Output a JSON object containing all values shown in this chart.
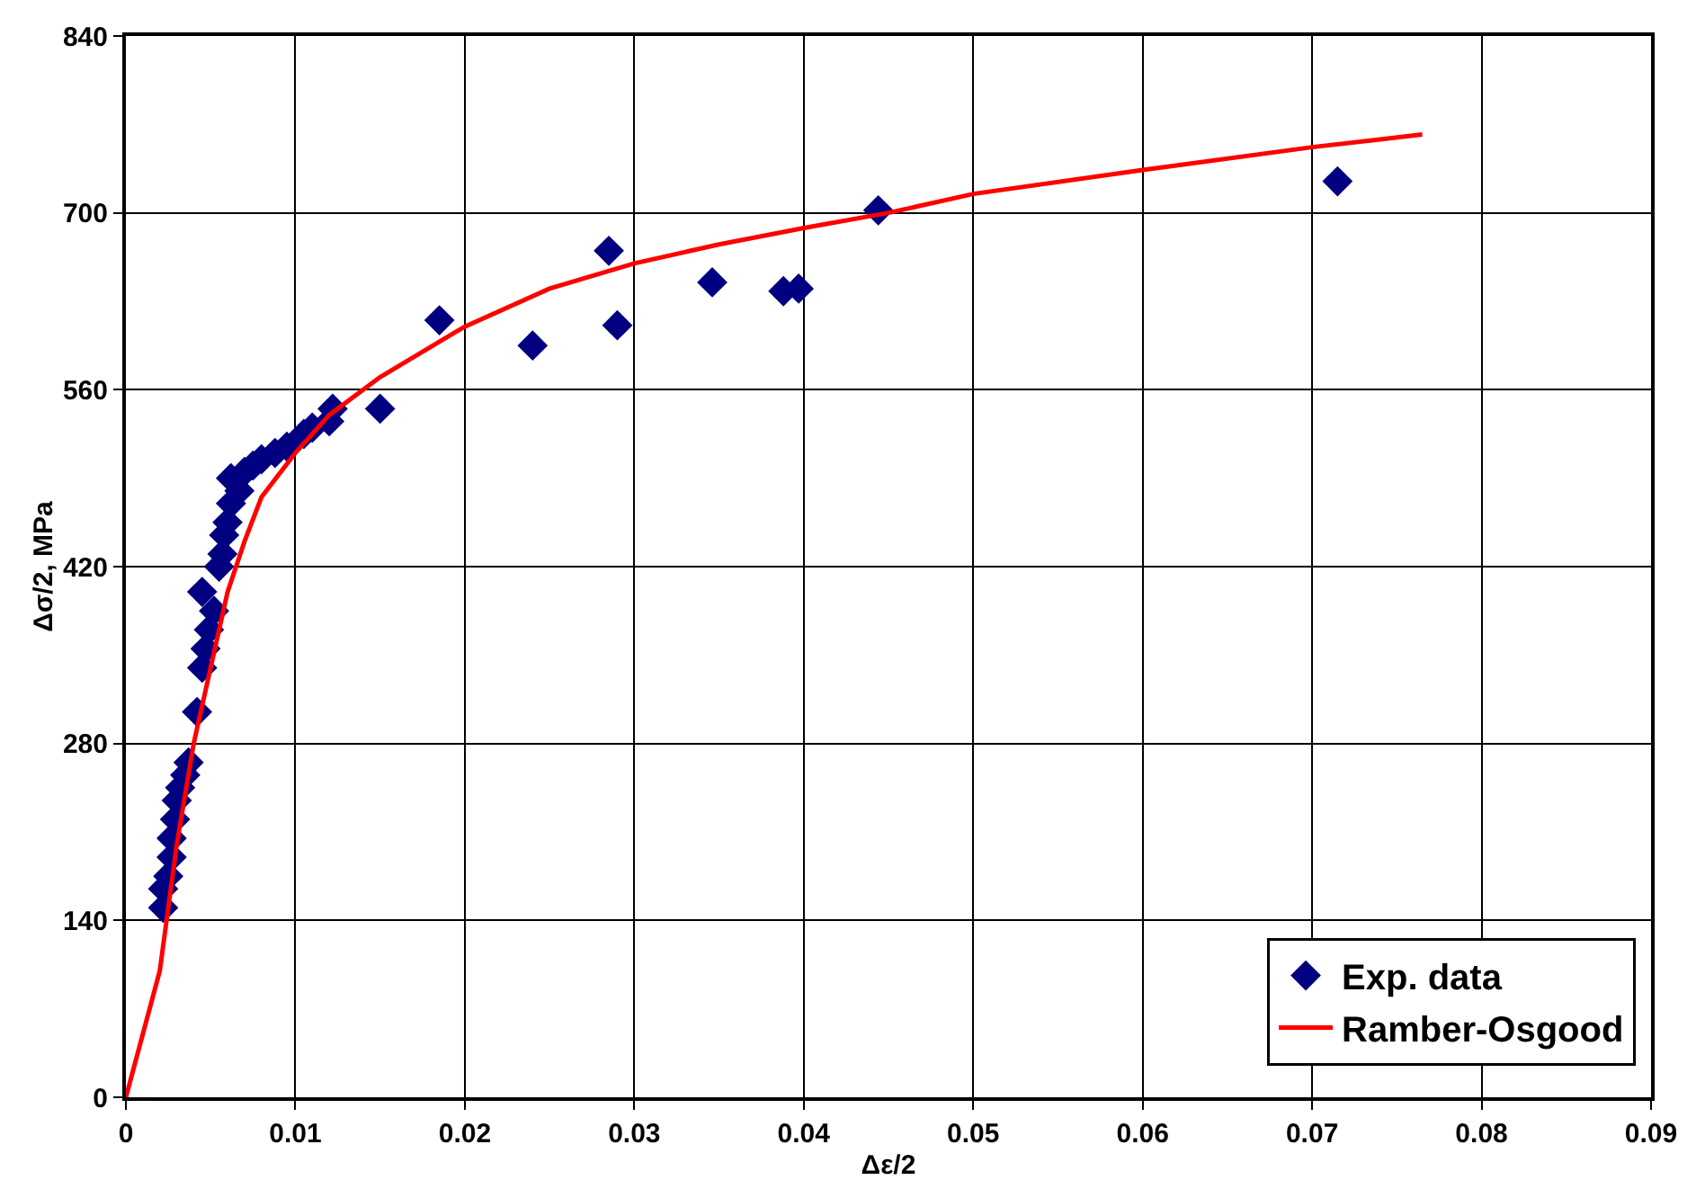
{
  "chart_data": {
    "type": "scatter",
    "xlabel": "Δε/2",
    "ylabel": "Δσ/2, MPa",
    "xlim": [
      0,
      0.09
    ],
    "ylim": [
      0,
      840
    ],
    "xticks": [
      0,
      0.01,
      0.02,
      0.03,
      0.04,
      0.05,
      0.06,
      0.07,
      0.08,
      0.09
    ],
    "yticks": [
      0,
      140,
      280,
      420,
      560,
      700,
      840
    ],
    "grid": true,
    "legend": "bottom right",
    "series": [
      {
        "name": "Exp. data",
        "marker": "diamond",
        "color": "#000080",
        "x": [
          0.0022,
          0.0022,
          0.0025,
          0.0027,
          0.0027,
          0.0029,
          0.003,
          0.0032,
          0.0035,
          0.0037,
          0.0042,
          0.0045,
          0.0047,
          0.0049,
          0.0052,
          0.0045,
          0.0055,
          0.0057,
          0.0058,
          0.006,
          0.0062,
          0.0062,
          0.0067,
          0.007,
          0.0075,
          0.008,
          0.0088,
          0.0095,
          0.0105,
          0.011,
          0.012,
          0.0122,
          0.015,
          0.0185,
          0.024,
          0.0285,
          0.029,
          0.0346,
          0.0388,
          0.0397,
          0.0444,
          0.0715
        ],
        "values": [
          150,
          165,
          175,
          190,
          205,
          220,
          235,
          245,
          255,
          265,
          305,
          340,
          355,
          370,
          385,
          400,
          420,
          430,
          445,
          455,
          470,
          490,
          480,
          495,
          500,
          505,
          510,
          515,
          525,
          530,
          535,
          545,
          545,
          615,
          595,
          670,
          611,
          645,
          638,
          640,
          702,
          725
        ]
      },
      {
        "name": "Ramber-Osgood",
        "type": "line",
        "marker": "none",
        "line_style": "solid",
        "color": "#ff0000",
        "x": [
          0,
          0.002,
          0.003,
          0.004,
          0.005,
          0.006,
          0.007,
          0.008,
          0.01,
          0.012,
          0.015,
          0.02,
          0.025,
          0.03,
          0.035,
          0.04,
          0.045,
          0.05,
          0.06,
          0.07,
          0.0765
        ],
        "values": [
          0,
          100,
          200,
          280,
          340,
          400,
          440,
          475,
          510,
          540,
          570,
          610,
          640,
          660,
          675,
          688,
          700,
          715,
          734,
          752,
          762
        ]
      }
    ]
  }
}
